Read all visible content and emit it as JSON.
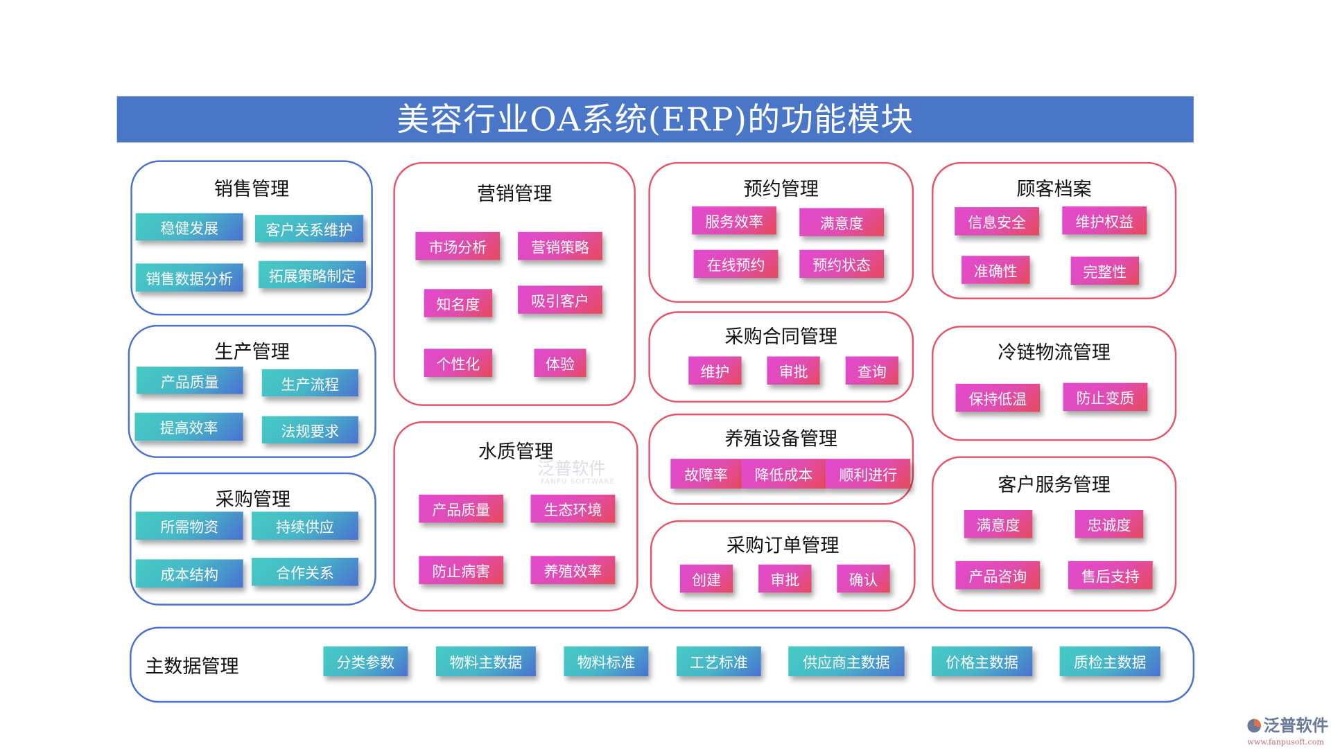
{
  "title": "美容行业OA系统(ERP)的功能模块",
  "colors": {
    "title_bar": "#4a76c8",
    "blue_border": "#4a72cc",
    "red_border": "#e55468",
    "teal_chip": "#46cbc4",
    "pink_chip": "#e24ad0"
  },
  "modules": [
    {
      "title": "销售管理",
      "theme": "blue",
      "items": [
        "稳健发展",
        "客户关系维护",
        "销售数据分析",
        "拓展策略制定"
      ]
    },
    {
      "title": "生产管理",
      "theme": "blue",
      "items": [
        "产品质量",
        "生产流程",
        "提高效率",
        "法规要求"
      ]
    },
    {
      "title": "采购管理",
      "theme": "blue",
      "items": [
        "所需物资",
        "持续供应",
        "成本结构",
        "合作关系"
      ]
    },
    {
      "title": "营销管理",
      "theme": "red",
      "items": [
        "市场分析",
        "营销策略",
        "知名度",
        "吸引客户",
        "个性化",
        "体验"
      ]
    },
    {
      "title": "水质管理",
      "theme": "red",
      "items": [
        "产品质量",
        "生态环境",
        "防止病害",
        "养殖效率"
      ]
    },
    {
      "title": "预约管理",
      "theme": "red",
      "items": [
        "服务效率",
        "满意度",
        "在线预约",
        "预约状态"
      ]
    },
    {
      "title": "采购合同管理",
      "theme": "red",
      "items": [
        "维护",
        "审批",
        "查询"
      ]
    },
    {
      "title": "养殖设备管理",
      "theme": "red",
      "items": [
        "故障率",
        "降低成本",
        "顺利进行"
      ]
    },
    {
      "title": "采购订单管理",
      "theme": "red",
      "items": [
        "创建",
        "审批",
        "确认"
      ]
    },
    {
      "title": "顾客档案",
      "theme": "red",
      "items": [
        "信息安全",
        "维护权益",
        "准确性",
        "完整性"
      ]
    },
    {
      "title": "冷链物流管理",
      "theme": "red",
      "items": [
        "保持低温",
        "防止变质"
      ]
    },
    {
      "title": "客户服务管理",
      "theme": "red",
      "items": [
        "满意度",
        "忠诚度",
        "产品咨询",
        "售后支持"
      ]
    }
  ],
  "master_data": {
    "title": "主数据管理",
    "theme": "blue",
    "items": [
      "分类参数",
      "物料主数据",
      "物料标准",
      "工艺标准",
      "供应商主数据",
      "价格主数据",
      "质检主数据"
    ]
  },
  "watermark": {
    "text": "泛普软件",
    "sub": "FANPU SOFTWARE"
  },
  "logo": {
    "text": "泛普软件",
    "url": "www.fanpusoft.com"
  }
}
